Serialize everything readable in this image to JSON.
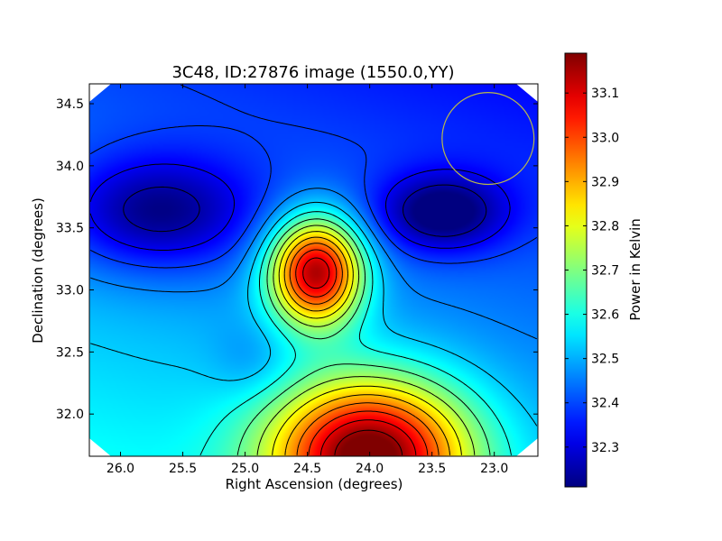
{
  "chart_data": {
    "type": "heatmap",
    "title": "3C48, ID:27876 image (1550.0,YY)",
    "xlabel": "Right Ascension (degrees)",
    "ylabel": "Declination (degrees)",
    "colorbar_label": "Power in Kelvin",
    "xlim": [
      26.25,
      22.65
    ],
    "ylim": [
      31.66,
      34.66
    ],
    "x_ticks": [
      26.0,
      25.5,
      25.0,
      24.5,
      24.0,
      23.5,
      23.0
    ],
    "x_tick_labels": [
      "26.0",
      "25.5",
      "25.0",
      "24.5",
      "24.0",
      "23.5",
      "23.0"
    ],
    "y_ticks": [
      32.0,
      32.5,
      33.0,
      33.5,
      34.0,
      34.5
    ],
    "y_tick_labels": [
      "32.0",
      "32.5",
      "33.0",
      "33.5",
      "34.0",
      "34.5"
    ],
    "colorbar_range": [
      32.21,
      33.19
    ],
    "colorbar_ticks": [
      32.3,
      32.4,
      32.5,
      32.6,
      32.7,
      32.8,
      32.9,
      33.0,
      33.1
    ],
    "colorbar_tick_labels": [
      "32.3",
      "32.4",
      "32.5",
      "32.6",
      "32.7",
      "32.8",
      "32.9",
      "33.0",
      "33.1"
    ],
    "colormap": "jet",
    "contour_color": "#000000",
    "beam_circle": {
      "ra": 23.05,
      "dec": 34.22,
      "radius_deg": 0.37,
      "color": "#b8b84a"
    },
    "features": [
      {
        "kind": "peak",
        "ra": 24.43,
        "dec": 33.15,
        "value": 33.16
      },
      {
        "kind": "peak",
        "ra": 24.0,
        "dec": 31.68,
        "value": 33.17
      },
      {
        "kind": "trough",
        "ra": 25.7,
        "dec": 33.62,
        "value": 32.23
      },
      {
        "kind": "trough",
        "ra": 23.42,
        "dec": 33.62,
        "value": 32.22
      },
      {
        "kind": "trough",
        "ra": 24.95,
        "dec": 32.42,
        "value": 32.42
      }
    ]
  }
}
